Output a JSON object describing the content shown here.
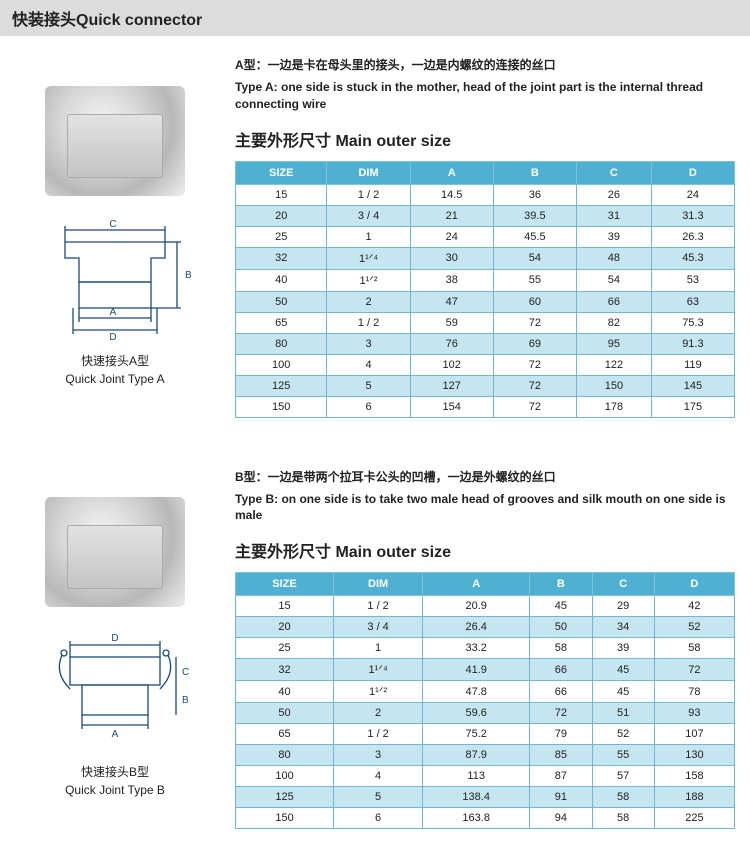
{
  "header_cn": "快装接头",
  "header_en": "Quick connector",
  "sections": [
    {
      "desc_cn": "A型：一边是卡在母头里的接头，一边是内螺纹的连接的丝口",
      "desc_en": "Type A: one side is stuck in the mother, head of the joint part is the internal thread connecting wire",
      "subtitle": "主要外形尺寸 Main outer size",
      "caption_cn": "快速接头A型",
      "caption_en": "Quick Joint Type A",
      "columns": [
        "SIZE",
        "DIM",
        "A",
        "B",
        "C",
        "D"
      ],
      "rows": [
        [
          "15",
          "1 / 2",
          "14.5",
          "36",
          "26",
          "24"
        ],
        [
          "20",
          "3 / 4",
          "21",
          "39.5",
          "31",
          "31.3"
        ],
        [
          "25",
          "1",
          "24",
          "45.5",
          "39",
          "26.3"
        ],
        [
          "32",
          "1¹ᐟ⁴",
          "30",
          "54",
          "48",
          "45.3"
        ],
        [
          "40",
          "1¹ᐟ²",
          "38",
          "55",
          "54",
          "53"
        ],
        [
          "50",
          "2",
          "47",
          "60",
          "66",
          "63"
        ],
        [
          "65",
          "1 / 2",
          "59",
          "72",
          "82",
          "75.3"
        ],
        [
          "80",
          "3",
          "76",
          "69",
          "95",
          "91.3"
        ],
        [
          "100",
          "4",
          "102",
          "72",
          "122",
          "119"
        ],
        [
          "125",
          "5",
          "127",
          "72",
          "150",
          "145"
        ],
        [
          "150",
          "6",
          "154",
          "72",
          "178",
          "175"
        ]
      ],
      "header_bg": "#4fb0d2",
      "alt_bg": "#c5e5f0",
      "border_color": "#6fb8d0"
    },
    {
      "desc_cn": "B型：一边是带两个拉耳卡公头的凹槽，一边是外螺纹的丝口",
      "desc_en": "Type B: on one side is to take two male head of grooves and silk mouth on one side is male",
      "subtitle": "主要外形尺寸 Main outer size",
      "caption_cn": "快速接头B型",
      "caption_en": "Quick Joint Type B",
      "columns": [
        "SIZE",
        "DIM",
        "A",
        "B",
        "C",
        "D"
      ],
      "rows": [
        [
          "15",
          "1 / 2",
          "20.9",
          "45",
          "29",
          "42"
        ],
        [
          "20",
          "3 / 4",
          "26.4",
          "50",
          "34",
          "52"
        ],
        [
          "25",
          "1",
          "33.2",
          "58",
          "39",
          "58"
        ],
        [
          "32",
          "1¹ᐟ⁴",
          "41.9",
          "66",
          "45",
          "72"
        ],
        [
          "40",
          "1¹ᐟ²",
          "47.8",
          "66",
          "45",
          "78"
        ],
        [
          "50",
          "2",
          "59.6",
          "72",
          "51",
          "93"
        ],
        [
          "65",
          "1 / 2",
          "75.2",
          "79",
          "52",
          "107"
        ],
        [
          "80",
          "3",
          "87.9",
          "85",
          "55",
          "130"
        ],
        [
          "100",
          "4",
          "113",
          "87",
          "57",
          "158"
        ],
        [
          "125",
          "5",
          "138.4",
          "91",
          "58",
          "188"
        ],
        [
          "150",
          "6",
          "163.8",
          "94",
          "58",
          "225"
        ]
      ],
      "header_bg": "#4fb0d2",
      "alt_bg": "#c5e5f0",
      "border_color": "#6fb8d0"
    }
  ]
}
